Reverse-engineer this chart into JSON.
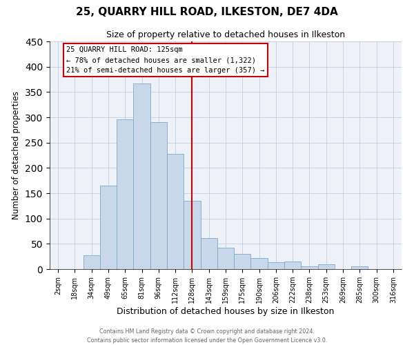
{
  "title": "25, QUARRY HILL ROAD, ILKESTON, DE7 4DA",
  "subtitle": "Size of property relative to detached houses in Ilkeston",
  "xlabel": "Distribution of detached houses by size in Ilkeston",
  "ylabel": "Number of detached properties",
  "bar_labels": [
    "2sqm",
    "18sqm",
    "34sqm",
    "49sqm",
    "65sqm",
    "81sqm",
    "96sqm",
    "112sqm",
    "128sqm",
    "143sqm",
    "159sqm",
    "175sqm",
    "190sqm",
    "206sqm",
    "222sqm",
    "238sqm",
    "253sqm",
    "269sqm",
    "285sqm",
    "300sqm",
    "316sqm"
  ],
  "bar_heights": [
    0,
    0,
    27,
    165,
    296,
    367,
    290,
    228,
    135,
    62,
    42,
    30,
    22,
    14,
    15,
    5,
    10,
    0,
    5,
    0,
    0
  ],
  "bar_color": "#c8d8ea",
  "bar_edge_color": "#7aaac8",
  "vline_x": 8,
  "vline_color": "#cc0000",
  "ylim": [
    0,
    450
  ],
  "yticks": [
    0,
    50,
    100,
    150,
    200,
    250,
    300,
    350,
    400,
    450
  ],
  "annotation_title": "25 QUARRY HILL ROAD: 125sqm",
  "annotation_line1": "← 78% of detached houses are smaller (1,322)",
  "annotation_line2": "21% of semi-detached houses are larger (357) →",
  "annotation_box_color": "#ffffff",
  "annotation_box_edge": "#cc0000",
  "footer_line1": "Contains HM Land Registry data © Crown copyright and database right 2024.",
  "footer_line2": "Contains public sector information licensed under the Open Government Licence v3.0.",
  "fig_bg_color": "#ffffff",
  "plot_bg_color": "#eef2f8"
}
